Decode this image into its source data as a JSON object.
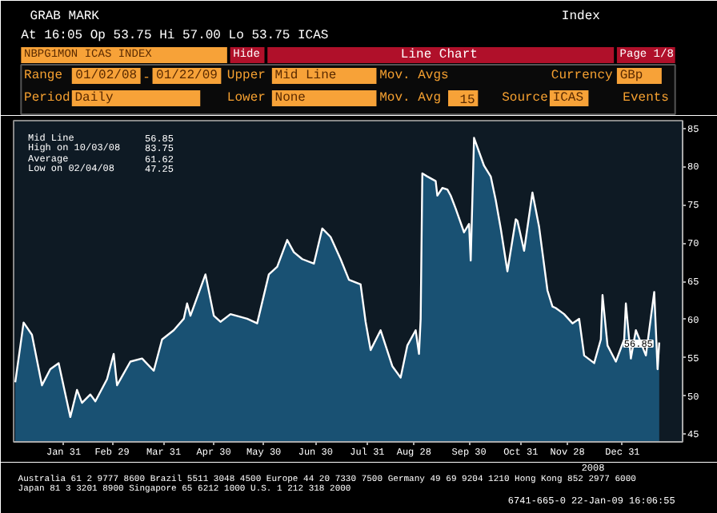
{
  "chart_data": {
    "type": "area",
    "title": "GRAB MARK",
    "subtitle": "At 16:05  Op 53.75 Hi 57.00 Lo 53.75  ICAS",
    "x": [
      "2008-01-02",
      "2008-01-07",
      "2008-01-12",
      "2008-01-18",
      "2008-01-23",
      "2008-01-28",
      "2008-02-04",
      "2008-02-08",
      "2008-02-11",
      "2008-02-16",
      "2008-02-19",
      "2008-02-26",
      "2008-03-01",
      "2008-03-03",
      "2008-03-11",
      "2008-03-18",
      "2008-03-25",
      "2008-03-30",
      "2008-04-06",
      "2008-04-12",
      "2008-04-14",
      "2008-04-16",
      "2008-04-25",
      "2008-04-30",
      "2008-05-04",
      "2008-05-10",
      "2008-05-20",
      "2008-05-26",
      "2008-06-02",
      "2008-06-07",
      "2008-06-13",
      "2008-06-17",
      "2008-06-22",
      "2008-06-29",
      "2008-07-04",
      "2008-07-09",
      "2008-07-15",
      "2008-07-20",
      "2008-07-27",
      "2008-07-30",
      "2008-08-02",
      "2008-08-08",
      "2008-08-15",
      "2008-08-20",
      "2008-08-24",
      "2008-08-29",
      "2008-08-31",
      "2008-09-01",
      "2008-09-02",
      "2008-09-05",
      "2008-09-10",
      "2008-09-11",
      "2008-09-14",
      "2008-09-17",
      "2008-09-19",
      "2008-09-22",
      "2008-09-27",
      "2008-09-30",
      "2008-10-01",
      "2008-10-03",
      "2008-10-09",
      "2008-10-13",
      "2008-10-16",
      "2008-10-19",
      "2008-10-23",
      "2008-10-28",
      "2008-10-29",
      "2008-11-02",
      "2008-11-07",
      "2008-11-11",
      "2008-11-16",
      "2008-11-19",
      "2008-11-21",
      "2008-11-26",
      "2008-12-01",
      "2008-12-05",
      "2008-12-08",
      "2008-12-14",
      "2008-12-18",
      "2008-12-19",
      "2008-12-22",
      "2008-12-27",
      "2009-01-01",
      "2009-01-02",
      "2009-01-05",
      "2009-01-08",
      "2009-01-14",
      "2009-01-19",
      "2009-01-20",
      "2009-01-21",
      "2009-01-22"
    ],
    "series": [
      {
        "color": "#1a5478",
        "values": [
          51.8,
          59.6,
          58.0,
          51.4,
          53.5,
          54.3,
          47.25,
          50.8,
          49.1,
          50.2,
          49.3,
          52.2,
          55.5,
          51.4,
          54.5,
          54.9,
          53.3,
          57.4,
          58.6,
          60.1,
          62.1,
          60.5,
          65.9,
          60.5,
          59.7,
          60.7,
          60.1,
          59.5,
          65.9,
          66.9,
          70.4,
          68.8,
          67.9,
          67.3,
          71.9,
          70.8,
          67.9,
          65.2,
          64.6,
          59.7,
          56.0,
          58.6,
          53.9,
          52.4,
          56.6,
          58.6,
          55.5,
          60.1,
          79.1,
          78.7,
          78.1,
          76.2,
          77.2,
          77.0,
          76.2,
          74.5,
          71.4,
          72.5,
          67.7,
          83.75,
          80.1,
          78.7,
          75.6,
          71.9,
          66.3,
          73.1,
          72.9,
          69.0,
          76.6,
          72.1,
          63.8,
          61.7,
          61.5,
          60.7,
          59.5,
          60.1,
          55.3,
          54.3,
          57.4,
          63.2,
          56.6,
          54.5,
          57.4,
          62.1,
          54.9,
          58.6,
          55.3,
          63.6,
          58.6,
          53.5,
          57.0
        ]
      }
    ],
    "xlim": [
      "2008-01-01",
      "2009-02-05"
    ],
    "xticks": [
      {
        "value": "2008-01-31",
        "label": "Jan 31"
      },
      {
        "value": "2008-02-29",
        "label": "Feb 29"
      },
      {
        "value": "2008-03-31",
        "label": "Mar 31"
      },
      {
        "value": "2008-04-30",
        "label": "Apr 30"
      },
      {
        "value": "2008-05-30",
        "label": "May 30"
      },
      {
        "value": "2008-06-30",
        "label": "Jun 30"
      },
      {
        "value": "2008-07-31",
        "label": "Jul 31"
      },
      {
        "value": "2008-08-28",
        "label": "Aug 28"
      },
      {
        "value": "2008-09-30",
        "label": "Sep 30"
      },
      {
        "value": "2008-10-31",
        "label": "Oct 31"
      },
      {
        "value": "2008-11-28",
        "label": "Nov 28"
      },
      {
        "value": "2008-12-31",
        "label": "Dec 31"
      }
    ],
    "ylim": [
      44,
      86
    ],
    "yticks": [
      45,
      50,
      55,
      60,
      65,
      70,
      75,
      80,
      85
    ],
    "annotations": [
      "Index",
      "NBPG1MON ICAS INDEX",
      "Hide",
      "Line Chart",
      "Page 1/8",
      "Range",
      "01/02/08",
      "-",
      "01/22/09",
      "Upper",
      "Mid Line",
      "Mov. Avgs",
      "Currency",
      "GBp",
      "Period",
      "Daily",
      "Lower",
      "None",
      "Mov. Avg",
      "15",
      "Source",
      "ICAS",
      "Events",
      "Mid Line",
      "56.85",
      "High on 10/03/08",
      "83.75",
      "Average",
      "61.62",
      "Low on 02/04/08",
      "47.25",
      "2008",
      "Australia 61 2 9777 8600 Brazil 5511 3048 4500 Europe 44 20 7330 7500 Germany 49 69 9204 1210 Hong Kong 852 2977 6000",
      "Japan 81 3 3201 8900      Singapore 65 6212 1000      U.S. 1 212 318 2000",
      "6741-665-0 22-Jan-09 16:06:55",
      {
        "text": "56.85",
        "x": "2009-01-22",
        "y": 56.85
      }
    ]
  }
}
